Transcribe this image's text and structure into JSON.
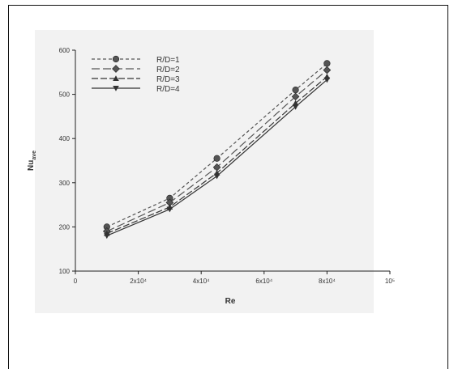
{
  "chart_data": {
    "type": "line",
    "title": "",
    "xlabel": "Re",
    "ylabel": "Nu",
    "ylabel_sub": "ave",
    "xlim": [
      0,
      100000
    ],
    "ylim": [
      100,
      600
    ],
    "x_ticks": [
      {
        "value": 0,
        "label": "0"
      },
      {
        "value": 20000,
        "label": "2x10⁴"
      },
      {
        "value": 40000,
        "label": "4x10⁴"
      },
      {
        "value": 60000,
        "label": "6x10⁴"
      },
      {
        "value": 80000,
        "label": "8x10⁴"
      },
      {
        "value": 100000,
        "label": "10⁵"
      }
    ],
    "y_ticks": [
      100,
      200,
      300,
      400,
      500,
      600
    ],
    "grid": false,
    "legend_position": "top-left",
    "x": [
      10000,
      30000,
      45000,
      70000,
      80000
    ],
    "series": [
      {
        "name": "R/D=1",
        "values": [
          200,
          265,
          355,
          510,
          570
        ],
        "marker": "circle",
        "dash": "4,3",
        "color": "#555555"
      },
      {
        "name": "R/D=2",
        "values": [
          190,
          255,
          335,
          495,
          555
        ],
        "marker": "diamond",
        "dash": "10,4",
        "color": "#555555"
      },
      {
        "name": "R/D=3",
        "values": [
          185,
          245,
          322,
          480,
          540
        ],
        "marker": "triangle-up",
        "dash": "8,3",
        "color": "#333333"
      },
      {
        "name": "R/D=4",
        "values": [
          180,
          240,
          315,
          472,
          533
        ],
        "marker": "triangle-down",
        "dash": "",
        "color": "#333333"
      }
    ]
  }
}
